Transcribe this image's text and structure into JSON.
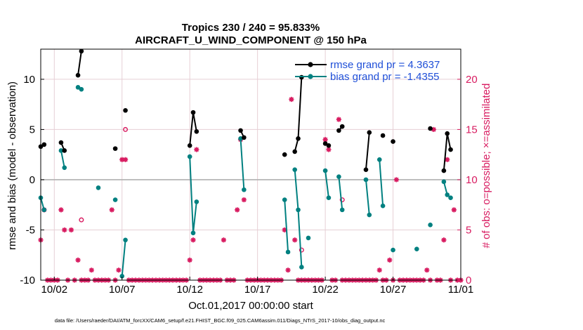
{
  "chart_data": {
    "type": "line",
    "title": "Tropics 230 / 240 = 95.833%",
    "subtitle": "AIRCRAFT_U_WIND_COMPONENT @ 150 hPa",
    "xlabel": "Oct.01,2017 00:00:00 start",
    "ylabel_left": "rmse and bias (model - observation)",
    "ylabel_right": "# of obs: o=possible; ×=assimilated",
    "xlim": [
      1,
      32
    ],
    "ylim_left": [
      -10,
      13
    ],
    "ylim_right": [
      0,
      23
    ],
    "x_ticks": [
      {
        "x": 2,
        "label": "10/02"
      },
      {
        "x": 7,
        "label": "10/07"
      },
      {
        "x": 12,
        "label": "10/12"
      },
      {
        "x": 17,
        "label": "10/17"
      },
      {
        "x": 22,
        "label": "10/22"
      },
      {
        "x": 27,
        "label": "10/27"
      },
      {
        "x": 32,
        "label": "11/01"
      }
    ],
    "y_ticks_left": [
      "10",
      "5",
      "0",
      "-5",
      "-10"
    ],
    "y_ticks_left_values": [
      10,
      5,
      0,
      -5,
      -10
    ],
    "y_ticks_right": [
      "20",
      "15",
      "10",
      "5",
      "0"
    ],
    "y_ticks_right_values": [
      20,
      15,
      10,
      5,
      0
    ],
    "grid": true,
    "legend_position": "top-right",
    "colors": {
      "rmse": "#000000",
      "bias": "#008080",
      "obs": "#d81b60",
      "right_axis": "#d81b60",
      "legend_text": "#1f4fd8",
      "grid": "#e6cfd5",
      "zero_line": "#b0b0b0"
    },
    "series": [
      {
        "name": "rmse grand pr = 4.3637",
        "key": "rmse",
        "segments": [
          [
            [
              1.0,
              3.3
            ],
            [
              1.25,
              3.5
            ]
          ],
          [
            [
              2.5,
              3.7
            ],
            [
              2.75,
              2.9
            ]
          ],
          [
            [
              3.75,
              10.4
            ],
            [
              4.0,
              12.8
            ]
          ],
          [
            [
              6.5,
              3.1
            ]
          ],
          [
            [
              7.25,
              6.9
            ]
          ],
          [
            [
              12.0,
              3.4
            ],
            [
              12.25,
              6.7
            ],
            [
              12.5,
              4.8
            ]
          ],
          [
            [
              15.75,
              4.9
            ],
            [
              16.0,
              4.2
            ]
          ],
          [
            [
              19.0,
              2.5
            ]
          ],
          [
            [
              19.75,
              2.8
            ],
            [
              20.0,
              4.1
            ],
            [
              20.25,
              10.2
            ]
          ],
          [
            [
              22.0,
              3.6
            ],
            [
              22.25,
              3.4
            ]
          ],
          [
            [
              23.0,
              4.9
            ],
            [
              23.25,
              5.3
            ]
          ],
          [
            [
              25.0,
              1.0
            ],
            [
              25.25,
              4.7
            ]
          ],
          [
            [
              26.25,
              4.4
            ]
          ],
          [
            [
              27.0,
              3.8
            ]
          ],
          [
            [
              29.75,
              5.1
            ]
          ],
          [
            [
              30.75,
              0.9
            ],
            [
              31.0,
              4.6
            ],
            [
              31.25,
              3.0
            ]
          ]
        ]
      },
      {
        "name": "bias grand pr = -1.4355",
        "key": "bias",
        "segments": [
          [
            [
              1.0,
              -1.8
            ],
            [
              1.25,
              -3.0
            ]
          ],
          [
            [
              2.5,
              2.9
            ],
            [
              2.75,
              1.2
            ]
          ],
          [
            [
              3.75,
              9.2
            ],
            [
              4.0,
              9.0
            ]
          ],
          [
            [
              5.25,
              -0.8
            ]
          ],
          [
            [
              6.5,
              -2.0
            ]
          ],
          [
            [
              7.0,
              -9.6
            ],
            [
              7.25,
              -6.0
            ]
          ],
          [
            [
              12.0,
              2.3
            ],
            [
              12.25,
              -5.3
            ],
            [
              12.5,
              -2.2
            ]
          ],
          [
            [
              15.75,
              4.1
            ],
            [
              16.0,
              -1.0
            ]
          ],
          [
            [
              19.0,
              -2.0
            ],
            [
              19.25,
              -7.2
            ]
          ],
          [
            [
              19.75,
              1.0
            ],
            [
              20.0,
              -3.0
            ],
            [
              20.25,
              -8.7
            ]
          ],
          [
            [
              20.75,
              -5.8
            ]
          ],
          [
            [
              22.0,
              0.9
            ],
            [
              22.25,
              -1.8
            ]
          ],
          [
            [
              23.0,
              0.3
            ],
            [
              23.25,
              -3.0
            ]
          ],
          [
            [
              25.0,
              0.0
            ],
            [
              25.25,
              -3.5
            ]
          ],
          [
            [
              26.0,
              2.0
            ],
            [
              26.25,
              -2.6
            ]
          ],
          [
            [
              27.0,
              -7.0
            ]
          ],
          [
            [
              28.75,
              -6.9
            ]
          ],
          [
            [
              29.75,
              -4.5
            ]
          ],
          [
            [
              30.75,
              -0.2
            ],
            [
              31.0,
              -1.5
            ],
            [
              31.25,
              -1.8
            ]
          ]
        ]
      },
      {
        "name": "obs possible",
        "key": "possible",
        "marker": "o",
        "x": [
          4.0,
          7.25,
          20.25,
          23.25
        ],
        "y": [
          6,
          15,
          3,
          8
        ]
      },
      {
        "name": "obs assimilated",
        "key": "assimilated",
        "marker": "x",
        "x": [
          1.0,
          1.25,
          1.5,
          1.75,
          2.0,
          2.25,
          2.5,
          2.75,
          3.0,
          3.25,
          3.5,
          3.75,
          4.0,
          4.25,
          4.5,
          4.75,
          5.0,
          5.25,
          5.5,
          5.75,
          6.0,
          6.25,
          6.5,
          6.75,
          7.0,
          7.25,
          7.5,
          7.75,
          8.0,
          8.25,
          8.5,
          8.75,
          9.0,
          9.25,
          9.5,
          9.75,
          10.0,
          10.25,
          10.5,
          10.75,
          11.0,
          11.25,
          11.5,
          11.75,
          12.0,
          12.25,
          12.5,
          12.75,
          13.0,
          13.25,
          13.5,
          13.75,
          14.0,
          14.25,
          14.5,
          14.75,
          15.0,
          15.25,
          15.5,
          15.75,
          16.0,
          16.25,
          16.5,
          16.75,
          17.0,
          17.25,
          17.5,
          17.75,
          18.0,
          18.25,
          18.5,
          18.75,
          19.0,
          19.25,
          19.5,
          19.75,
          20.0,
          20.25,
          20.5,
          20.75,
          21.0,
          21.25,
          21.5,
          21.75,
          22.0,
          22.25,
          22.5,
          22.75,
          23.0,
          23.25,
          23.5,
          23.75,
          24.0,
          24.25,
          24.5,
          24.75,
          25.0,
          25.25,
          25.5,
          25.75,
          26.0,
          26.25,
          26.5,
          26.75,
          27.0,
          27.25,
          27.5,
          27.75,
          28.0,
          28.25,
          28.5,
          28.75,
          29.0,
          29.25,
          29.5,
          29.75,
          30.0,
          30.25,
          30.5,
          30.75,
          31.0,
          31.25,
          31.5,
          31.75,
          32.0
        ],
        "y": [
          4,
          7,
          0,
          0,
          0,
          0,
          7,
          5,
          0,
          5,
          0,
          2,
          0,
          0,
          0,
          1,
          0,
          0,
          0,
          0,
          0,
          7,
          0,
          1,
          12,
          12,
          0,
          0,
          0,
          0,
          0,
          0,
          0,
          0,
          0,
          0,
          0,
          0,
          0,
          0,
          0,
          0,
          0,
          0,
          2,
          4,
          13,
          0,
          0,
          0,
          0,
          0,
          0,
          0,
          4,
          0,
          0,
          0,
          7,
          14,
          8,
          0,
          0,
          0,
          0,
          0,
          0,
          0,
          0,
          0,
          0,
          0,
          5,
          1,
          18,
          4,
          0,
          0,
          0,
          0,
          0,
          0,
          0,
          0,
          14,
          13,
          0,
          0,
          16,
          0,
          0,
          0,
          0,
          0,
          0,
          0,
          0,
          0,
          0,
          0,
          1,
          0,
          0,
          2,
          0,
          10,
          0,
          0,
          0,
          0,
          0,
          0,
          0,
          0,
          1,
          0,
          15,
          0,
          0,
          4,
          12,
          0,
          7,
          0,
          0
        ]
      }
    ]
  },
  "legend": [
    {
      "label": "rmse grand pr = 4.3637",
      "color": "#000000",
      "key": "rmse"
    },
    {
      "label": "bias grand pr = -1.4355",
      "color": "#008080",
      "key": "bias"
    }
  ],
  "footer": "data file: /Users/raeder/DAI/ATM_forcXX/CAM6_setup/f.e21.FHIST_BGC.f09_025.CAM6assim.011/Diags_NTrS_2017-10/obs_diag_output.nc"
}
